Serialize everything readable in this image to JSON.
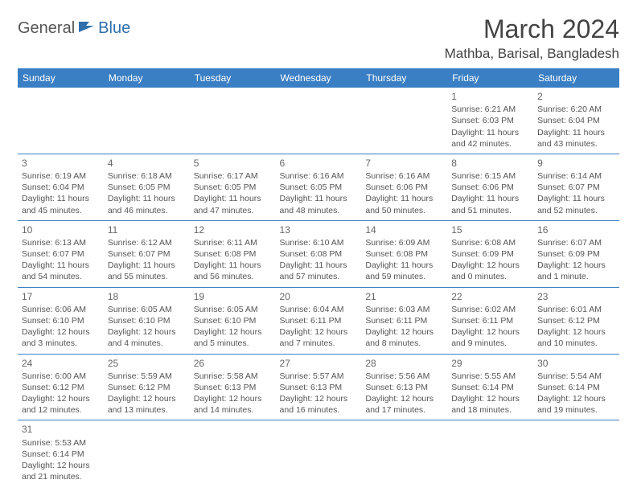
{
  "logo": {
    "text1": "General",
    "text2": "Blue"
  },
  "title": "March 2024",
  "location": "Mathba, Barisal, Bangladesh",
  "colors": {
    "header_bg": "#3a7fc4",
    "header_text": "#ffffff",
    "border": "#3a7fc4",
    "body_text": "#555555",
    "title_text": "#444444",
    "logo_gray": "#555555",
    "logo_blue": "#2f6fab"
  },
  "weekdays": [
    "Sunday",
    "Monday",
    "Tuesday",
    "Wednesday",
    "Thursday",
    "Friday",
    "Saturday"
  ],
  "weeks": [
    [
      null,
      null,
      null,
      null,
      null,
      {
        "d": "1",
        "sr": "Sunrise: 6:21 AM",
        "ss": "Sunset: 6:03 PM",
        "dl1": "Daylight: 11 hours",
        "dl2": "and 42 minutes."
      },
      {
        "d": "2",
        "sr": "Sunrise: 6:20 AM",
        "ss": "Sunset: 6:04 PM",
        "dl1": "Daylight: 11 hours",
        "dl2": "and 43 minutes."
      }
    ],
    [
      {
        "d": "3",
        "sr": "Sunrise: 6:19 AM",
        "ss": "Sunset: 6:04 PM",
        "dl1": "Daylight: 11 hours",
        "dl2": "and 45 minutes."
      },
      {
        "d": "4",
        "sr": "Sunrise: 6:18 AM",
        "ss": "Sunset: 6:05 PM",
        "dl1": "Daylight: 11 hours",
        "dl2": "and 46 minutes."
      },
      {
        "d": "5",
        "sr": "Sunrise: 6:17 AM",
        "ss": "Sunset: 6:05 PM",
        "dl1": "Daylight: 11 hours",
        "dl2": "and 47 minutes."
      },
      {
        "d": "6",
        "sr": "Sunrise: 6:16 AM",
        "ss": "Sunset: 6:05 PM",
        "dl1": "Daylight: 11 hours",
        "dl2": "and 48 minutes."
      },
      {
        "d": "7",
        "sr": "Sunrise: 6:16 AM",
        "ss": "Sunset: 6:06 PM",
        "dl1": "Daylight: 11 hours",
        "dl2": "and 50 minutes."
      },
      {
        "d": "8",
        "sr": "Sunrise: 6:15 AM",
        "ss": "Sunset: 6:06 PM",
        "dl1": "Daylight: 11 hours",
        "dl2": "and 51 minutes."
      },
      {
        "d": "9",
        "sr": "Sunrise: 6:14 AM",
        "ss": "Sunset: 6:07 PM",
        "dl1": "Daylight: 11 hours",
        "dl2": "and 52 minutes."
      }
    ],
    [
      {
        "d": "10",
        "sr": "Sunrise: 6:13 AM",
        "ss": "Sunset: 6:07 PM",
        "dl1": "Daylight: 11 hours",
        "dl2": "and 54 minutes."
      },
      {
        "d": "11",
        "sr": "Sunrise: 6:12 AM",
        "ss": "Sunset: 6:07 PM",
        "dl1": "Daylight: 11 hours",
        "dl2": "and 55 minutes."
      },
      {
        "d": "12",
        "sr": "Sunrise: 6:11 AM",
        "ss": "Sunset: 6:08 PM",
        "dl1": "Daylight: 11 hours",
        "dl2": "and 56 minutes."
      },
      {
        "d": "13",
        "sr": "Sunrise: 6:10 AM",
        "ss": "Sunset: 6:08 PM",
        "dl1": "Daylight: 11 hours",
        "dl2": "and 57 minutes."
      },
      {
        "d": "14",
        "sr": "Sunrise: 6:09 AM",
        "ss": "Sunset: 6:08 PM",
        "dl1": "Daylight: 11 hours",
        "dl2": "and 59 minutes."
      },
      {
        "d": "15",
        "sr": "Sunrise: 6:08 AM",
        "ss": "Sunset: 6:09 PM",
        "dl1": "Daylight: 12 hours",
        "dl2": "and 0 minutes."
      },
      {
        "d": "16",
        "sr": "Sunrise: 6:07 AM",
        "ss": "Sunset: 6:09 PM",
        "dl1": "Daylight: 12 hours",
        "dl2": "and 1 minute."
      }
    ],
    [
      {
        "d": "17",
        "sr": "Sunrise: 6:06 AM",
        "ss": "Sunset: 6:10 PM",
        "dl1": "Daylight: 12 hours",
        "dl2": "and 3 minutes."
      },
      {
        "d": "18",
        "sr": "Sunrise: 6:05 AM",
        "ss": "Sunset: 6:10 PM",
        "dl1": "Daylight: 12 hours",
        "dl2": "and 4 minutes."
      },
      {
        "d": "19",
        "sr": "Sunrise: 6:05 AM",
        "ss": "Sunset: 6:10 PM",
        "dl1": "Daylight: 12 hours",
        "dl2": "and 5 minutes."
      },
      {
        "d": "20",
        "sr": "Sunrise: 6:04 AM",
        "ss": "Sunset: 6:11 PM",
        "dl1": "Daylight: 12 hours",
        "dl2": "and 7 minutes."
      },
      {
        "d": "21",
        "sr": "Sunrise: 6:03 AM",
        "ss": "Sunset: 6:11 PM",
        "dl1": "Daylight: 12 hours",
        "dl2": "and 8 minutes."
      },
      {
        "d": "22",
        "sr": "Sunrise: 6:02 AM",
        "ss": "Sunset: 6:11 PM",
        "dl1": "Daylight: 12 hours",
        "dl2": "and 9 minutes."
      },
      {
        "d": "23",
        "sr": "Sunrise: 6:01 AM",
        "ss": "Sunset: 6:12 PM",
        "dl1": "Daylight: 12 hours",
        "dl2": "and 10 minutes."
      }
    ],
    [
      {
        "d": "24",
        "sr": "Sunrise: 6:00 AM",
        "ss": "Sunset: 6:12 PM",
        "dl1": "Daylight: 12 hours",
        "dl2": "and 12 minutes."
      },
      {
        "d": "25",
        "sr": "Sunrise: 5:59 AM",
        "ss": "Sunset: 6:12 PM",
        "dl1": "Daylight: 12 hours",
        "dl2": "and 13 minutes."
      },
      {
        "d": "26",
        "sr": "Sunrise: 5:58 AM",
        "ss": "Sunset: 6:13 PM",
        "dl1": "Daylight: 12 hours",
        "dl2": "and 14 minutes."
      },
      {
        "d": "27",
        "sr": "Sunrise: 5:57 AM",
        "ss": "Sunset: 6:13 PM",
        "dl1": "Daylight: 12 hours",
        "dl2": "and 16 minutes."
      },
      {
        "d": "28",
        "sr": "Sunrise: 5:56 AM",
        "ss": "Sunset: 6:13 PM",
        "dl1": "Daylight: 12 hours",
        "dl2": "and 17 minutes."
      },
      {
        "d": "29",
        "sr": "Sunrise: 5:55 AM",
        "ss": "Sunset: 6:14 PM",
        "dl1": "Daylight: 12 hours",
        "dl2": "and 18 minutes."
      },
      {
        "d": "30",
        "sr": "Sunrise: 5:54 AM",
        "ss": "Sunset: 6:14 PM",
        "dl1": "Daylight: 12 hours",
        "dl2": "and 19 minutes."
      }
    ],
    [
      {
        "d": "31",
        "sr": "Sunrise: 5:53 AM",
        "ss": "Sunset: 6:14 PM",
        "dl1": "Daylight: 12 hours",
        "dl2": "and 21 minutes."
      },
      null,
      null,
      null,
      null,
      null,
      null
    ]
  ]
}
